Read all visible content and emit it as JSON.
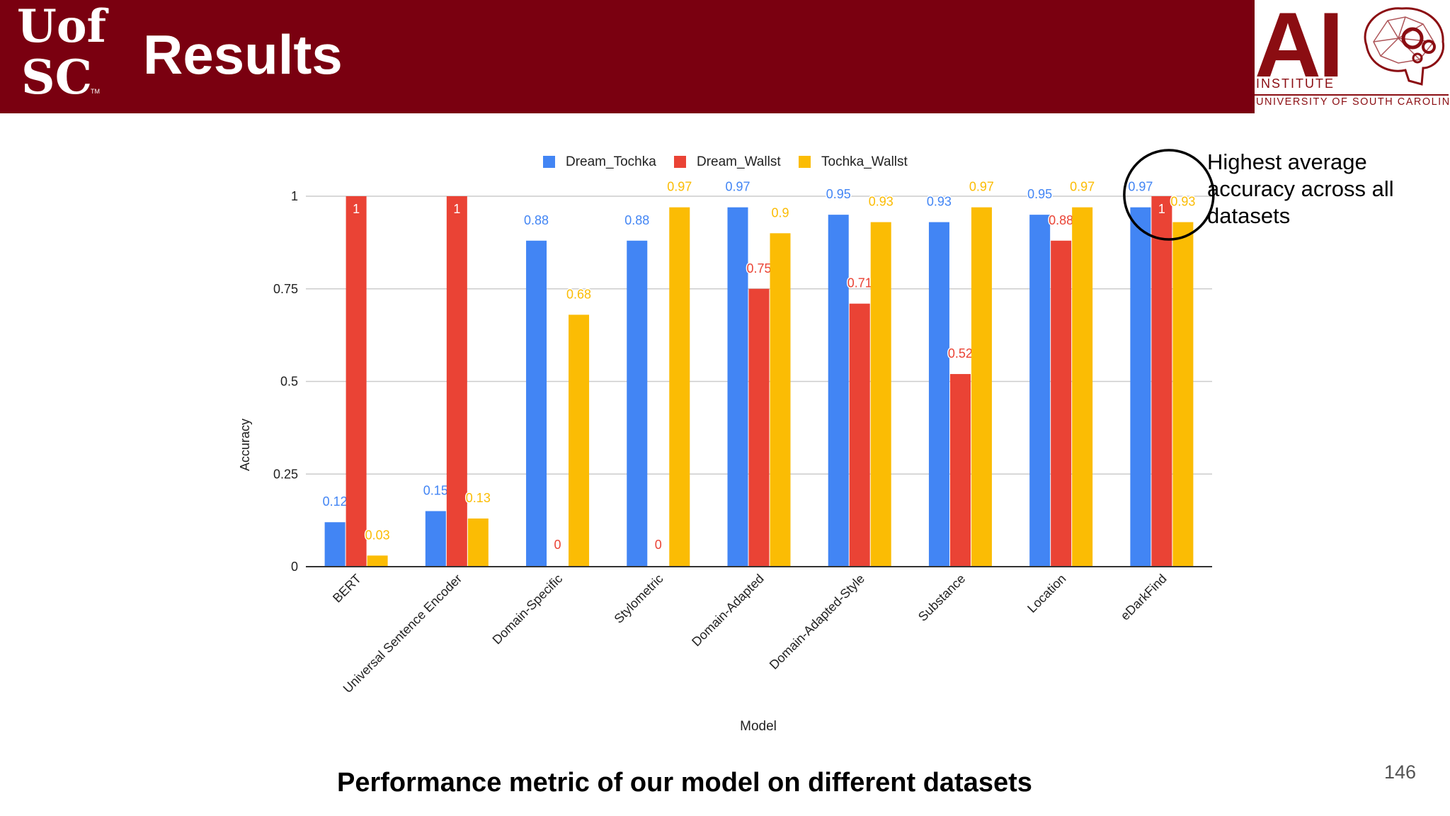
{
  "header": {
    "logo_line1": "Uof",
    "logo_line2": "SC",
    "logo_tm": "TM",
    "title": "Results",
    "ai_logo_letters": "AI",
    "ai_logo_institute": "INSTITUTE",
    "ai_logo_university": "UNIVERSITY OF SOUTH CAROLINA"
  },
  "annotation": "Highest average accuracy across all datasets",
  "caption": "Performance metric of our model on different datasets",
  "page_number": "146",
  "colors": {
    "header_bg": "#7a0010",
    "series": [
      "#4285f4",
      "#ea4335",
      "#fbbc04"
    ]
  },
  "chart_data": {
    "type": "bar",
    "title": "",
    "xlabel": "Model",
    "ylabel": "Accuracy",
    "ylim": [
      0,
      1
    ],
    "yticks": [
      0,
      0.25,
      0.5,
      0.75,
      1
    ],
    "ytick_labels": [
      "0",
      "0.25",
      "0.5",
      "0.75",
      "1"
    ],
    "legend_position": "top-center",
    "grid": true,
    "categories": [
      "BERT",
      "Universal Sentence Encoder",
      "Domain-Specific",
      "Stylometric",
      "Domain-Adapted",
      "Domain-Adapted-Style",
      "Substance",
      "Location",
      "eDarkFind"
    ],
    "series": [
      {
        "name": "Dream_Tochka",
        "color": "#4285f4",
        "values": [
          0.12,
          0.15,
          0.88,
          0.88,
          0.97,
          0.95,
          0.93,
          0.95,
          0.97
        ],
        "labels": [
          "0.12",
          "0.15",
          "0.88",
          "0.88",
          "0.97",
          "0.95",
          "0.93",
          "0.95",
          "0.97"
        ]
      },
      {
        "name": "Dream_Wallst",
        "color": "#ea4335",
        "values": [
          1,
          1,
          0,
          0,
          0.75,
          0.71,
          0.52,
          0.88,
          1
        ],
        "labels": [
          "1",
          "1",
          "0",
          "0",
          "0.75",
          "0.71",
          "0.52",
          "0.88",
          "1"
        ]
      },
      {
        "name": "Tochka_Wallst",
        "color": "#fbbc04",
        "values": [
          0.03,
          0.13,
          0.68,
          0.97,
          0.9,
          0.93,
          0.97,
          0.97,
          0.93
        ],
        "labels": [
          "0.03",
          "0.13",
          "0.68",
          "0.97",
          "0.9",
          "0.93",
          "0.97",
          "0.97",
          "0.93"
        ]
      }
    ],
    "highlight_category": "eDarkFind"
  }
}
